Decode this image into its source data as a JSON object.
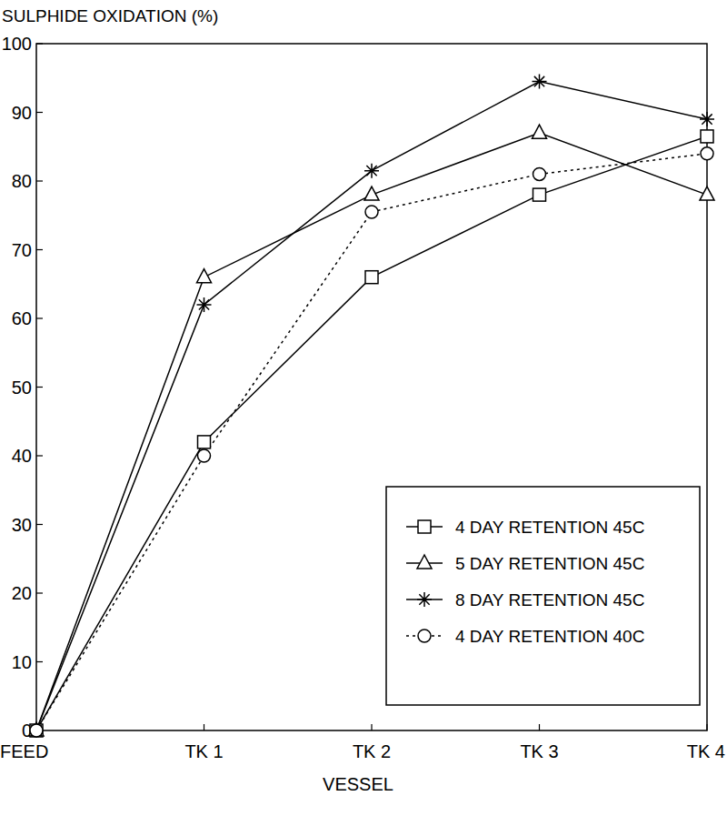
{
  "chart_data": {
    "type": "line",
    "y_label": "SULPHIDE OXIDATION (%)",
    "x_label": "VESSEL",
    "categories": [
      "FEED",
      "TK 1",
      "TK 2",
      "TK 3",
      "TK 4"
    ],
    "series": [
      {
        "name": "4 DAY RETENTION 45C",
        "color": "#000000",
        "marker": "square",
        "line_style": "solid",
        "values": [
          0,
          42,
          66,
          78,
          86.5
        ]
      },
      {
        "name": "5 DAY RETENTION 45C",
        "color": "#000000",
        "marker": "triangle",
        "line_style": "solid",
        "values": [
          0,
          66,
          78,
          87,
          78
        ]
      },
      {
        "name": "8 DAY RETENTION 45C",
        "color": "#000000",
        "marker": "star",
        "line_style": "solid",
        "values": [
          0,
          62,
          81.5,
          94.5,
          89
        ]
      },
      {
        "name": "4 DAY RETENTION 40C",
        "color": "#000000",
        "marker": "circle",
        "line_style": "dotted",
        "values": [
          0,
          40,
          75.5,
          81,
          84
        ]
      }
    ],
    "ylim": [
      0,
      100
    ],
    "yticks": [
      0,
      10,
      20,
      30,
      40,
      50,
      60,
      70,
      80,
      90,
      100
    ],
    "grid": false,
    "legend": "lower right"
  }
}
